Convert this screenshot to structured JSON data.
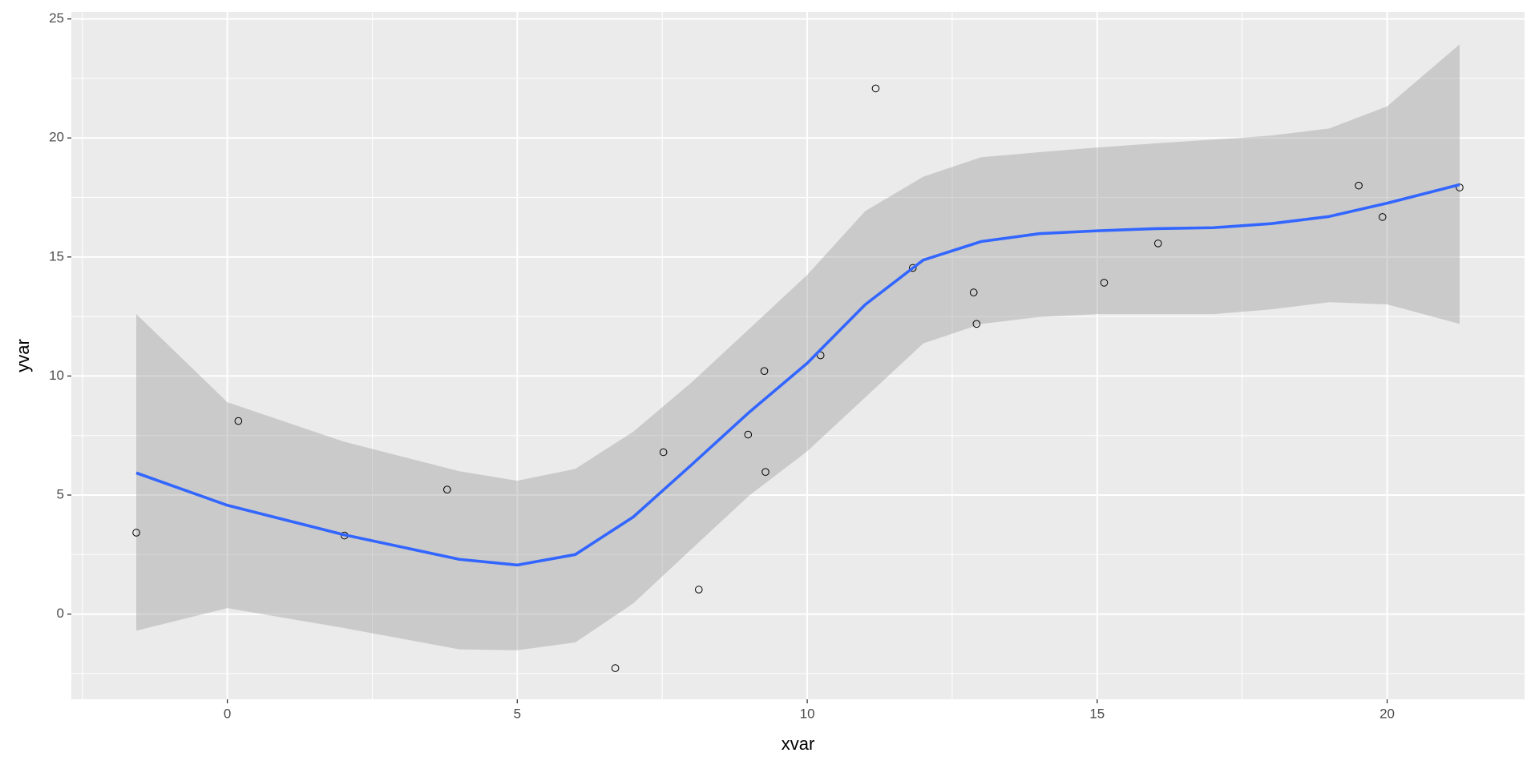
{
  "chart_data": {
    "type": "scatter",
    "x_label": "xvar",
    "y_label": "yvar",
    "xlim": [
      -2.69,
      22.37
    ],
    "ylim": [
      -3.58,
      25.29
    ],
    "xticks": [
      0,
      5,
      10,
      15,
      20
    ],
    "yticks": [
      0,
      5,
      10,
      15,
      20,
      25
    ],
    "grid": true,
    "series": [
      {
        "color": "#000000",
        "x": [
          -1.57,
          0.19,
          2.02,
          3.79,
          6.69,
          7.52,
          8.13,
          8.98,
          9.26,
          9.28,
          10.23,
          11.18,
          11.82,
          12.87,
          12.92,
          15.12,
          16.05,
          19.51,
          19.92,
          21.25
        ],
        "values": [
          3.42,
          8.11,
          3.3,
          5.23,
          -2.27,
          6.8,
          1.03,
          7.54,
          10.21,
          5.97,
          10.87,
          22.08,
          14.54,
          13.51,
          12.19,
          13.92,
          15.57,
          18.0,
          16.68,
          17.92
        ]
      }
    ],
    "smooth": {
      "color": "#3366ff",
      "band_color": "#999999",
      "x": [
        -1.57,
        0,
        2,
        4,
        5,
        6,
        7,
        8,
        9,
        10,
        11,
        12,
        13,
        14,
        15,
        16,
        17,
        18,
        19,
        20,
        21.25
      ],
      "values": [
        5.93,
        4.57,
        3.34,
        2.3,
        2.06,
        2.5,
        4.08,
        6.26,
        8.48,
        10.54,
        13.0,
        14.87,
        15.65,
        15.98,
        16.1,
        16.19,
        16.23,
        16.4,
        16.7,
        17.26,
        18.04
      ],
      "upper": [
        12.6,
        8.9,
        7.25,
        6.0,
        5.6,
        6.1,
        7.66,
        9.72,
        11.98,
        14.25,
        16.93,
        18.37,
        19.19,
        19.4,
        19.6,
        19.77,
        19.93,
        20.1,
        20.4,
        21.33,
        23.93
      ],
      "lower": [
        -0.7,
        0.25,
        -0.58,
        -1.48,
        -1.52,
        -1.19,
        0.45,
        2.72,
        4.98,
        6.84,
        9.1,
        11.37,
        12.19,
        12.48,
        12.6,
        12.6,
        12.6,
        12.8,
        13.1,
        13.01,
        12.19
      ]
    }
  }
}
